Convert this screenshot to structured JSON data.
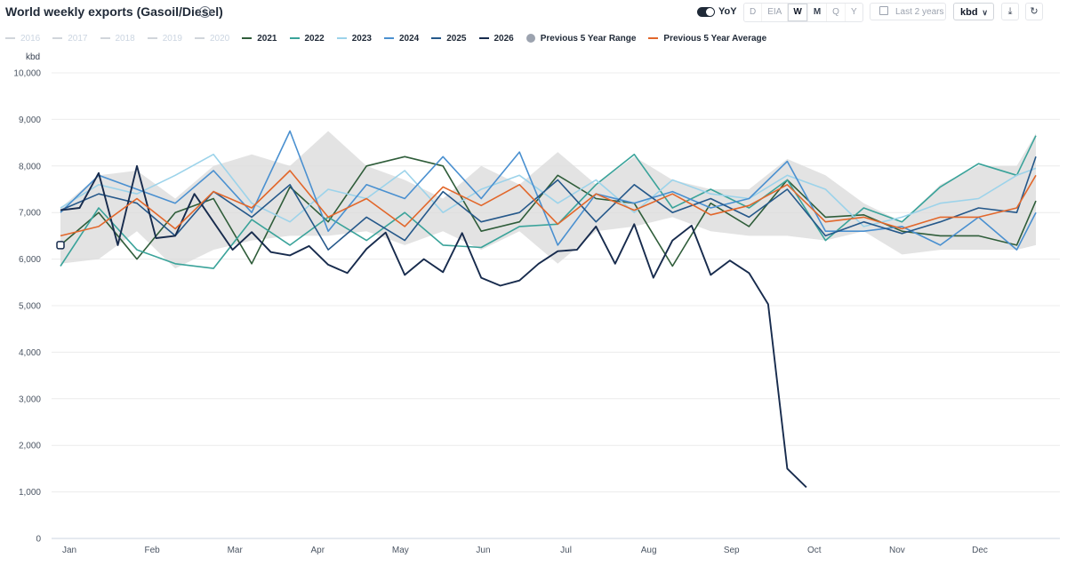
{
  "header": {
    "title": "World weekly exports (Gasoil/Diesel)",
    "info_icon": "info-circle-icon",
    "yoy_label": "YoY",
    "frequencies": [
      "D",
      "EIA",
      "W",
      "M",
      "Q",
      "Y"
    ],
    "active_frequency": "W",
    "range_label": "Last 2 years",
    "unit_label": "kbd",
    "download_icon": "download-icon",
    "refresh_icon": "refresh-icon"
  },
  "chart_data": {
    "type": "line",
    "title": "World weekly exports (Gasoil/Diesel)",
    "ylabel": "kbd",
    "ylim": [
      0,
      10000
    ],
    "y_ticks": [
      "0",
      "1,000",
      "2,000",
      "3,000",
      "4,000",
      "5,000",
      "6,000",
      "7,000",
      "8,000",
      "9,000",
      "10,000"
    ],
    "x_month_labels": [
      "Jan",
      "Feb",
      "Mar",
      "Apr",
      "May",
      "Jun",
      "Jul",
      "Aug",
      "Sep",
      "Oct",
      "Nov",
      "Dec"
    ],
    "x_unit": "week of year",
    "grid": "horizontal",
    "legend_position": "top-left",
    "legend": [
      {
        "label": "2016",
        "color": "#d1d5db",
        "active": false,
        "kind": "line"
      },
      {
        "label": "2017",
        "color": "#d1d5db",
        "active": false,
        "kind": "line"
      },
      {
        "label": "2018",
        "color": "#d1d5db",
        "active": false,
        "kind": "line"
      },
      {
        "label": "2019",
        "color": "#d1d5db",
        "active": false,
        "kind": "line"
      },
      {
        "label": "2020",
        "color": "#d1d5db",
        "active": false,
        "kind": "line"
      },
      {
        "label": "2021",
        "color": "#2f5d3a",
        "active": true,
        "kind": "line"
      },
      {
        "label": "2022",
        "color": "#3aa39a",
        "active": true,
        "kind": "line"
      },
      {
        "label": "2023",
        "color": "#9cd3ea",
        "active": true,
        "kind": "line"
      },
      {
        "label": "2024",
        "color": "#4a90d0",
        "active": true,
        "kind": "line"
      },
      {
        "label": "2025",
        "color": "#25588a",
        "active": true,
        "kind": "line"
      },
      {
        "label": "2026",
        "color": "#172b4d",
        "active": true,
        "kind": "line"
      },
      {
        "label": "Previous 5 Year Range",
        "color": "#9ca3af",
        "active": true,
        "kind": "dot"
      },
      {
        "label": "Previous 5 Year Average",
        "color": "#e2672b",
        "active": true,
        "kind": "line"
      }
    ],
    "range_band": {
      "name": "Previous 5 Year Range",
      "color": "#d9d9d9",
      "weeks": [
        1,
        3,
        5,
        7,
        9,
        11,
        13,
        15,
        17,
        19,
        21,
        23,
        25,
        27,
        29,
        31,
        33,
        35,
        37,
        39,
        41,
        43,
        45,
        47,
        49,
        51,
        52
      ],
      "upper": [
        7100,
        7800,
        7900,
        7300,
        8000,
        8250,
        8000,
        8750,
        8000,
        7700,
        7300,
        8000,
        7600,
        8300,
        7600,
        8200,
        7700,
        7500,
        7500,
        8150,
        7800,
        7200,
        6800,
        7600,
        8000,
        8000,
        8700
      ],
      "lower": [
        5900,
        6000,
        6600,
        5800,
        6200,
        6400,
        6500,
        6500,
        6600,
        6300,
        6600,
        6200,
        6600,
        5900,
        6600,
        6700,
        6900,
        6600,
        6500,
        6500,
        6400,
        6600,
        6100,
        6200,
        6200,
        6200,
        6300
      ]
    },
    "series": [
      {
        "name": "2021",
        "color": "#2f5d3a",
        "width": 1.6,
        "x": [
          1,
          3,
          5,
          7,
          9,
          11,
          13,
          15,
          17,
          19,
          21,
          23,
          25,
          27,
          29,
          31,
          33,
          35,
          37,
          39,
          41,
          43,
          45,
          47,
          49,
          51,
          52
        ],
        "y": [
          6300,
          7000,
          6000,
          7000,
          7300,
          5900,
          7550,
          6800,
          8000,
          8200,
          8000,
          6600,
          6800,
          7800,
          7300,
          7200,
          5850,
          7200,
          6700,
          7700,
          6900,
          6950,
          6600,
          6500,
          6500,
          6300,
          7250
        ]
      },
      {
        "name": "2022",
        "color": "#3aa39a",
        "width": 1.6,
        "x": [
          1,
          3,
          5,
          7,
          9,
          11,
          13,
          15,
          17,
          19,
          21,
          23,
          25,
          27,
          29,
          31,
          33,
          35,
          37,
          39,
          41,
          43,
          45,
          47,
          49,
          51,
          52
        ],
        "y": [
          5850,
          7100,
          6200,
          5900,
          5800,
          6850,
          6300,
          6900,
          6400,
          7000,
          6300,
          6250,
          6700,
          6750,
          7600,
          8250,
          7100,
          7500,
          7100,
          7700,
          6400,
          7100,
          6800,
          7550,
          8050,
          7800,
          8650
        ]
      },
      {
        "name": "2023",
        "color": "#9cd3ea",
        "width": 1.6,
        "x": [
          1,
          3,
          5,
          7,
          9,
          11,
          13,
          15,
          17,
          19,
          21,
          23,
          25,
          27,
          29,
          31,
          33,
          35,
          37,
          39,
          41,
          43,
          45,
          47,
          49,
          51,
          52
        ],
        "y": [
          7100,
          7600,
          7400,
          7800,
          8250,
          7200,
          6800,
          7500,
          7300,
          7900,
          7000,
          7500,
          7800,
          7200,
          7700,
          7000,
          7700,
          7400,
          7300,
          7800,
          7500,
          6700,
          6900,
          7200,
          7300,
          7800,
          7950
        ]
      },
      {
        "name": "2024",
        "color": "#4a90d0",
        "width": 1.6,
        "x": [
          1,
          3,
          5,
          7,
          9,
          11,
          13,
          15,
          17,
          19,
          21,
          23,
          25,
          27,
          29,
          31,
          33,
          35,
          37,
          39,
          41,
          43,
          45,
          47,
          49,
          51,
          52
        ],
        "y": [
          7000,
          7800,
          7500,
          7200,
          7900,
          7000,
          8750,
          6600,
          7600,
          7300,
          8200,
          7300,
          8300,
          6300,
          7400,
          7200,
          7450,
          7100,
          7300,
          8100,
          6600,
          6600,
          6700,
          6300,
          6900,
          6200,
          7000
        ]
      },
      {
        "name": "2025",
        "color": "#25588a",
        "width": 1.6,
        "x": [
          1,
          3,
          5,
          7,
          9,
          11,
          13,
          15,
          17,
          19,
          21,
          23,
          25,
          27,
          29,
          31,
          33,
          35,
          37,
          39,
          41,
          43,
          45,
          47,
          49,
          51,
          52
        ],
        "y": [
          7050,
          7400,
          7200,
          6500,
          7450,
          6900,
          7600,
          6200,
          6900,
          6400,
          7450,
          6800,
          7000,
          7700,
          6800,
          7600,
          7000,
          7300,
          6900,
          7500,
          6500,
          6800,
          6550,
          6800,
          7100,
          7000,
          8200
        ]
      },
      {
        "name": "2026",
        "color": "#172b4d",
        "width": 1.9,
        "x": [
          1,
          2,
          3,
          4,
          5,
          6,
          7,
          8,
          9,
          10,
          11,
          12,
          13,
          14,
          15,
          16,
          17,
          18,
          19,
          20,
          21,
          22,
          23,
          24,
          25,
          26,
          27,
          28,
          29,
          30,
          31,
          32,
          33,
          34,
          35,
          36,
          37,
          38,
          39,
          40
        ],
        "y": [
          7050,
          7100,
          7850,
          6300,
          8000,
          6450,
          6500,
          7400,
          6800,
          6200,
          6580,
          6150,
          6080,
          6280,
          5880,
          5700,
          6220,
          6570,
          5660,
          6000,
          5720,
          6560,
          5600,
          5430,
          5540,
          5900,
          6170,
          6200,
          6700,
          5900,
          6750,
          5600,
          6400,
          6720,
          5660,
          5970,
          5700,
          5030,
          1500,
          1100
        ]
      },
      {
        "name": "Previous 5 Year Average",
        "color": "#e2672b",
        "width": 1.6,
        "x": [
          1,
          3,
          5,
          7,
          9,
          11,
          13,
          15,
          17,
          19,
          21,
          23,
          25,
          27,
          29,
          31,
          33,
          35,
          37,
          39,
          41,
          43,
          45,
          47,
          49,
          51,
          52
        ],
        "y": [
          6500,
          6700,
          7300,
          6650,
          7450,
          7100,
          7900,
          6900,
          7300,
          6700,
          7550,
          7150,
          7600,
          6750,
          7400,
          7050,
          7400,
          6950,
          7150,
          7600,
          6800,
          6900,
          6650,
          6900,
          6900,
          7100,
          7800
        ]
      }
    ]
  }
}
